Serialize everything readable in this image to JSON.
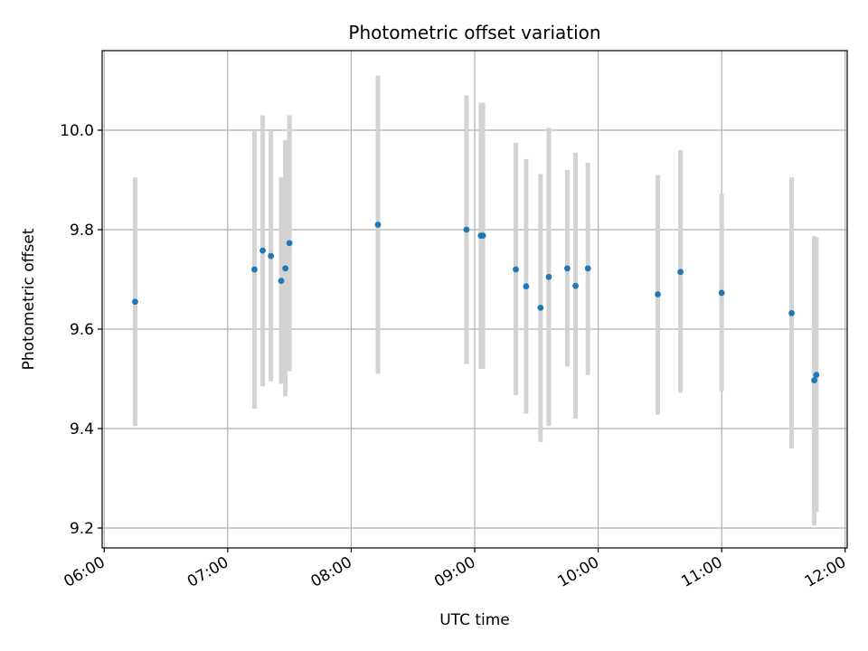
{
  "chart_data": {
    "type": "scatter",
    "title": "Photometric offset variation",
    "xlabel": "UTC time",
    "ylabel": "Photometric offset",
    "xlim": [
      "05:59",
      "12:01"
    ],
    "ylim": [
      9.16,
      10.16
    ],
    "x_ticks": [
      "06:00",
      "07:00",
      "08:00",
      "09:00",
      "10:00",
      "11:00",
      "12:00"
    ],
    "y_ticks": [
      "9.2",
      "9.4",
      "9.6",
      "9.8",
      "10.0"
    ],
    "grid": true,
    "marker_color": "#1f77b4",
    "errorbar_color": "#d3d3d3",
    "points": [
      {
        "time": "06:15",
        "y": 9.655,
        "low": 9.405,
        "high": 9.905
      },
      {
        "time": "07:13",
        "y": 9.72,
        "low": 9.44,
        "high": 10.0
      },
      {
        "time": "07:17",
        "y": 9.758,
        "low": 9.485,
        "high": 10.03
      },
      {
        "time": "07:21",
        "y": 9.747,
        "low": 9.495,
        "high": 10.0
      },
      {
        "time": "07:26",
        "y": 9.697,
        "low": 9.49,
        "high": 9.905
      },
      {
        "time": "07:28",
        "y": 9.722,
        "low": 9.465,
        "high": 9.98
      },
      {
        "time": "07:30",
        "y": 9.773,
        "low": 9.515,
        "high": 10.03
      },
      {
        "time": "08:13",
        "y": 9.81,
        "low": 9.51,
        "high": 10.11
      },
      {
        "time": "08:56",
        "y": 9.8,
        "low": 9.53,
        "high": 10.07
      },
      {
        "time": "09:03",
        "y": 9.788,
        "low": 9.52,
        "high": 10.055
      },
      {
        "time": "09:04",
        "y": 9.788,
        "low": 9.52,
        "high": 10.055
      },
      {
        "time": "09:20",
        "y": 9.72,
        "low": 9.467,
        "high": 9.975
      },
      {
        "time": "09:25",
        "y": 9.686,
        "low": 9.43,
        "high": 9.942
      },
      {
        "time": "09:32",
        "y": 9.643,
        "low": 9.373,
        "high": 9.912
      },
      {
        "time": "09:36",
        "y": 9.705,
        "low": 9.405,
        "high": 10.005
      },
      {
        "time": "09:45",
        "y": 9.722,
        "low": 9.525,
        "high": 9.92
      },
      {
        "time": "09:49",
        "y": 9.687,
        "low": 9.42,
        "high": 9.955
      },
      {
        "time": "09:55",
        "y": 9.722,
        "low": 9.508,
        "high": 9.935
      },
      {
        "time": "10:29",
        "y": 9.67,
        "low": 9.428,
        "high": 9.91
      },
      {
        "time": "10:40",
        "y": 9.715,
        "low": 9.472,
        "high": 9.96
      },
      {
        "time": "11:00",
        "y": 9.673,
        "low": 9.475,
        "high": 9.872
      },
      {
        "time": "11:34",
        "y": 9.632,
        "low": 9.36,
        "high": 9.905
      },
      {
        "time": "11:45",
        "y": 9.497,
        "low": 9.205,
        "high": 9.787
      },
      {
        "time": "11:46",
        "y": 9.508,
        "low": 9.232,
        "high": 9.785
      }
    ]
  }
}
